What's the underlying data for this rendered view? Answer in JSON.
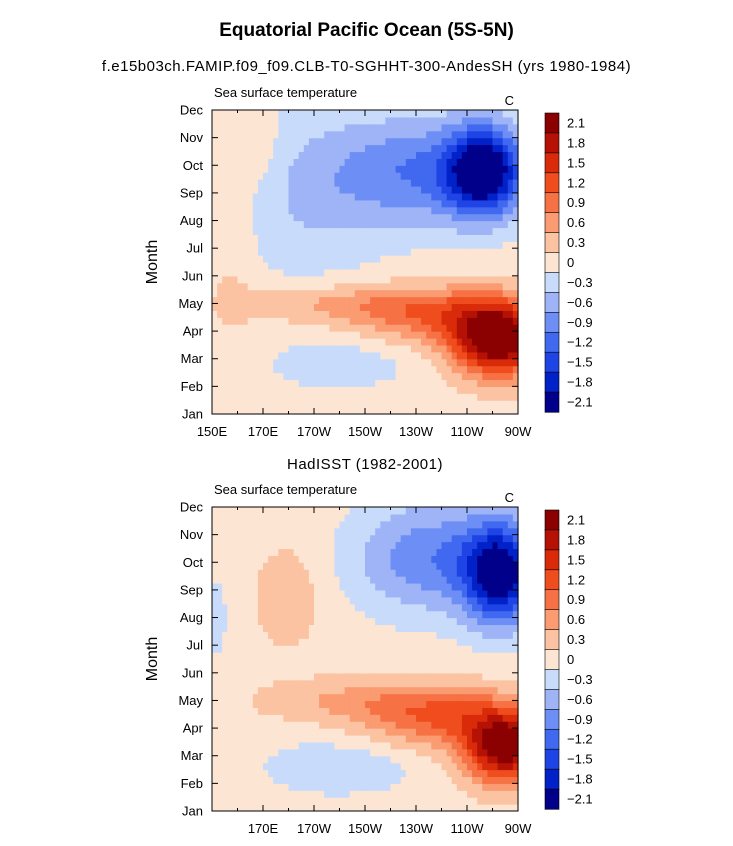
{
  "figure": {
    "title": "Equatorial Pacific Ocean (5S-5N)",
    "case_title": "f.e15b03ch.FAMIP.f09_f09.CLB-T0-SGHHT-300-AndesSH (yrs 1980-1984)",
    "obs_title": "HadISST (1982-2001)"
  },
  "chart_data": [
    {
      "type": "heatmap",
      "subtitle": "Sea surface temperature",
      "units": "C",
      "ylabel": "Month",
      "x_ticks": [
        "150E",
        "170E",
        "170W",
        "150W",
        "130W",
        "110W",
        "90W"
      ],
      "y_ticks": [
        "Jan",
        "Feb",
        "Mar",
        "Apr",
        "May",
        "Jun",
        "Jul",
        "Aug",
        "Sep",
        "Oct",
        "Nov",
        "Dec"
      ],
      "levels": [
        -2.1,
        -1.8,
        -1.5,
        -1.2,
        -0.9,
        -0.6,
        -0.3,
        0,
        0.3,
        0.6,
        0.9,
        1.2,
        1.5,
        1.8,
        2.1
      ],
      "level_labels": [
        "2.1",
        "1.8",
        "1.5",
        "1.2",
        "0.9",
        "0.6",
        "0.3",
        "0",
        "−0.3",
        "−0.6",
        "−0.9",
        "−1.2",
        "−1.5",
        "−1.8",
        "−2.1"
      ],
      "colors": [
        "#00008b",
        "#0022c8",
        "#1f44e5",
        "#4069f0",
        "#6d8ff5",
        "#9eb4f7",
        "#c9dbfa",
        "#fde5d4",
        "#fcc3a3",
        "#fa9b71",
        "#f67244",
        "#f04d1e",
        "#d92a0a",
        "#b51205",
        "#8b0000"
      ],
      "x_range": [
        150,
        270
      ],
      "month_range": [
        1,
        12
      ]
    },
    {
      "type": "heatmap",
      "subtitle": "Sea surface temperature",
      "units": "C",
      "ylabel": "Month",
      "x_ticks": [
        "",
        "170E",
        "170W",
        "150W",
        "130W",
        "110W",
        "90W"
      ],
      "y_ticks": [
        "Jan",
        "Feb",
        "Mar",
        "Apr",
        "May",
        "Jun",
        "Jul",
        "Aug",
        "Sep",
        "Oct",
        "Nov",
        "Dec"
      ],
      "levels": [
        -2.1,
        -1.8,
        -1.5,
        -1.2,
        -0.9,
        -0.6,
        -0.3,
        0,
        0.3,
        0.6,
        0.9,
        1.2,
        1.5,
        1.8,
        2.1
      ],
      "level_labels": [
        "2.1",
        "1.8",
        "1.5",
        "1.2",
        "0.9",
        "0.6",
        "0.3",
        "0",
        "−0.3",
        "−0.6",
        "−0.9",
        "−1.2",
        "−1.5",
        "−1.8",
        "−2.1"
      ],
      "colors": [
        "#00008b",
        "#0022c8",
        "#1f44e5",
        "#4069f0",
        "#6d8ff5",
        "#9eb4f7",
        "#c9dbfa",
        "#fde5d4",
        "#fcc3a3",
        "#fa9b71",
        "#f67244",
        "#f04d1e",
        "#d92a0a",
        "#b51205",
        "#8b0000"
      ],
      "x_range": [
        150,
        270
      ],
      "month_range": [
        1,
        12
      ]
    }
  ]
}
